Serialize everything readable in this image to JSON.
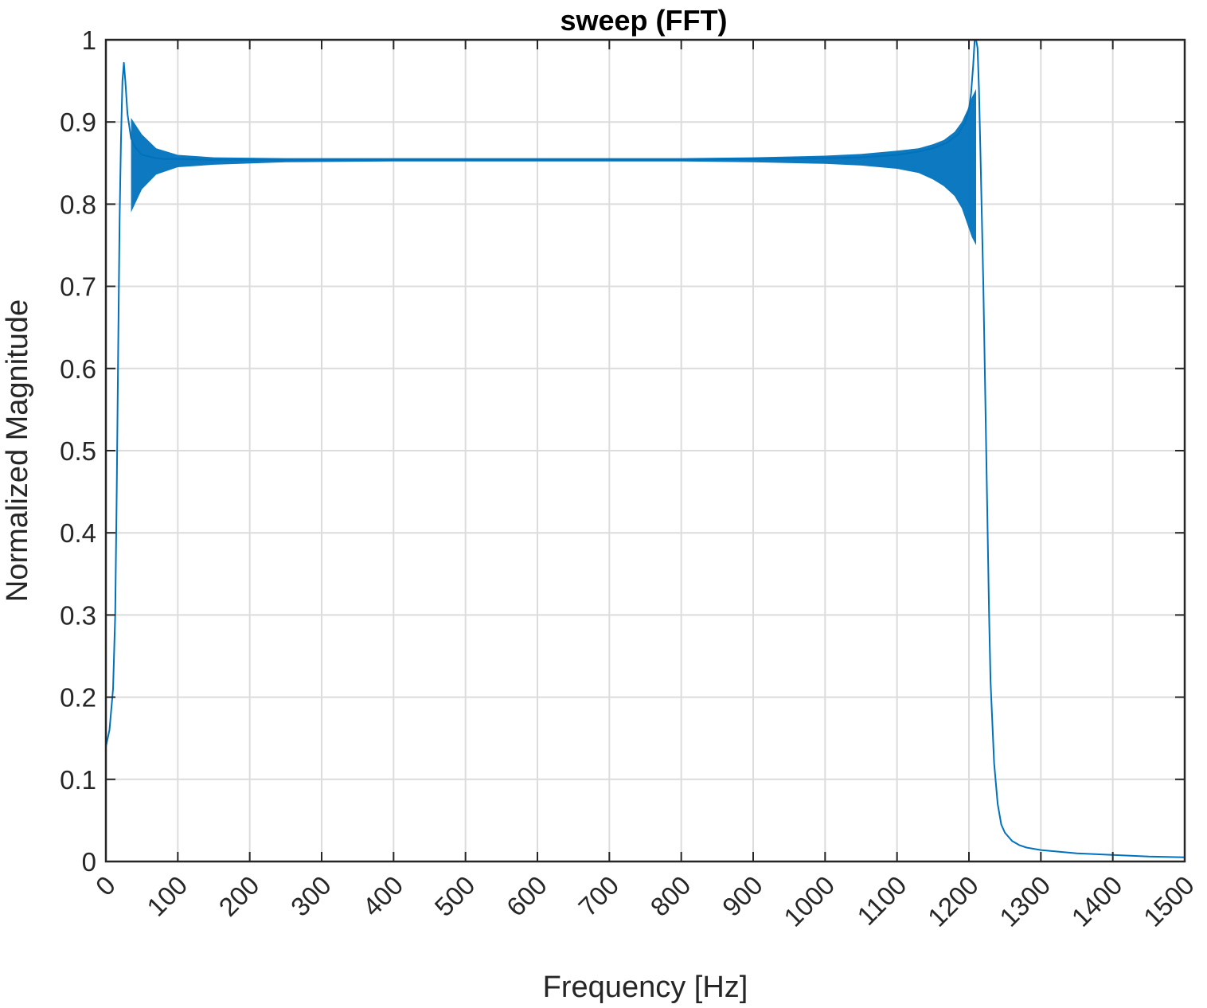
{
  "chart_data": {
    "type": "line",
    "title": "sweep (FFT)",
    "xlabel": "Frequency [Hz]",
    "ylabel": "Normalized Magnitude",
    "xlim": [
      0,
      1500
    ],
    "ylim": [
      0,
      1
    ],
    "xticks": [
      0,
      100,
      200,
      300,
      400,
      500,
      600,
      700,
      800,
      900,
      1000,
      1100,
      1200,
      1300,
      1400,
      1500
    ],
    "yticks": [
      0,
      0.1,
      0.2,
      0.3,
      0.4,
      0.5,
      0.6,
      0.7,
      0.8,
      0.9,
      1
    ],
    "ytick_labels": [
      "0",
      "0.1",
      "0.2",
      "0.3",
      "0.4",
      "0.5",
      "0.6",
      "0.7",
      "0.8",
      "0.9",
      "1"
    ],
    "grid": true,
    "series": [
      {
        "color": "#0072BD",
        "x": [
          0,
          5,
          10,
          13,
          15,
          17,
          19,
          21,
          23,
          25,
          27,
          30,
          35,
          40,
          45,
          50,
          60,
          70,
          80,
          100,
          150,
          200,
          300,
          400,
          500,
          600,
          700,
          800,
          900,
          1000,
          1050,
          1100,
          1130,
          1150,
          1170,
          1185,
          1195,
          1200,
          1203,
          1206,
          1208,
          1210,
          1212,
          1214,
          1216,
          1218,
          1220,
          1222,
          1225,
          1228,
          1230,
          1235,
          1240,
          1245,
          1250,
          1260,
          1270,
          1280,
          1300,
          1350,
          1400,
          1450,
          1500
        ],
        "y": [
          0.14,
          0.16,
          0.21,
          0.3,
          0.45,
          0.62,
          0.78,
          0.88,
          0.95,
          0.972,
          0.95,
          0.91,
          0.88,
          0.87,
          0.865,
          0.86,
          0.858,
          0.856,
          0.855,
          0.855,
          0.854,
          0.854,
          0.854,
          0.854,
          0.854,
          0.854,
          0.854,
          0.854,
          0.855,
          0.856,
          0.857,
          0.86,
          0.864,
          0.868,
          0.875,
          0.885,
          0.9,
          0.915,
          0.935,
          0.97,
          1.0,
          1.0,
          0.99,
          0.94,
          0.86,
          0.78,
          0.7,
          0.6,
          0.45,
          0.3,
          0.22,
          0.12,
          0.07,
          0.045,
          0.035,
          0.025,
          0.02,
          0.017,
          0.014,
          0.01,
          0.008,
          0.006,
          0.005
        ],
        "env_x": [
          35,
          50,
          70,
          100,
          150,
          250,
          400,
          600,
          800,
          900,
          1000,
          1050,
          1100,
          1130,
          1150,
          1165,
          1180,
          1190,
          1198,
          1204,
          1210
        ],
        "env_upper": [
          0.905,
          0.885,
          0.868,
          0.86,
          0.857,
          0.856,
          0.856,
          0.856,
          0.856,
          0.857,
          0.859,
          0.861,
          0.865,
          0.868,
          0.873,
          0.878,
          0.888,
          0.9,
          0.915,
          0.93,
          0.94
        ],
        "env_lower": [
          0.79,
          0.818,
          0.836,
          0.845,
          0.848,
          0.851,
          0.852,
          0.852,
          0.852,
          0.851,
          0.849,
          0.847,
          0.843,
          0.838,
          0.83,
          0.822,
          0.81,
          0.795,
          0.775,
          0.76,
          0.75
        ]
      }
    ]
  }
}
